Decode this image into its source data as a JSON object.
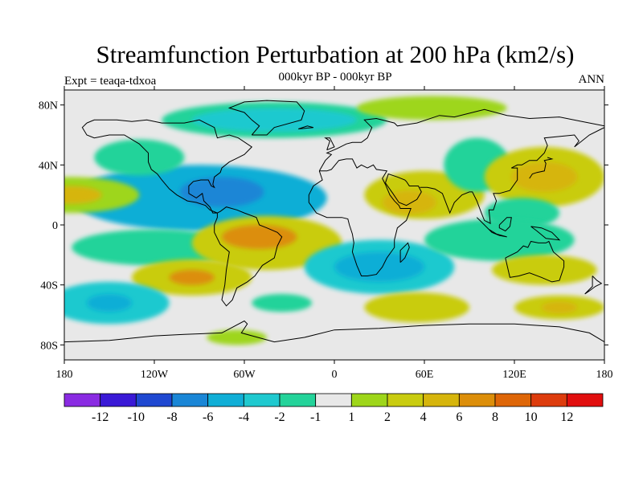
{
  "title": "Streamfunction Perturbation at 200 hPa (km2/s)",
  "subtitle": "000kyr BP - 000kyr BP",
  "left_label": "Expt = teaqa-tdxoa",
  "right_label": "ANN",
  "lat_ticks": [
    {
      "lat": 80,
      "label": "80N"
    },
    {
      "lat": 40,
      "label": "40N"
    },
    {
      "lat": 0,
      "label": "0"
    },
    {
      "lat": -40,
      "label": "40S"
    },
    {
      "lat": -80,
      "label": "80S"
    }
  ],
  "lon_ticks": [
    {
      "lon": -180,
      "label": "180"
    },
    {
      "lon": -120,
      "label": "120W"
    },
    {
      "lon": -60,
      "label": "60W"
    },
    {
      "lon": 0,
      "label": "0"
    },
    {
      "lon": 60,
      "label": "60E"
    },
    {
      "lon": 120,
      "label": "120E"
    },
    {
      "lon": 180,
      "label": "180"
    }
  ],
  "colorbar": {
    "colors": [
      "#8a2be2",
      "#3a19d6",
      "#1f48d1",
      "#1a86d6",
      "#10aed6",
      "#1fc9cf",
      "#24d39a",
      "#e8e8e8",
      "#9ed61a",
      "#c9cc10",
      "#d6b50c",
      "#dc8e0a",
      "#de6608",
      "#dd3c0d",
      "#e10e0e"
    ],
    "labels": [
      "-12",
      "-10",
      "-8",
      "-6",
      "-4",
      "-2",
      "-1",
      "1",
      "2",
      "4",
      "6",
      "8",
      "10",
      "12"
    ]
  },
  "regions": [
    {
      "lon": -90,
      "lat": 18,
      "rx": 85,
      "ry": 22,
      "color": "#10aed6"
    },
    {
      "lon": -75,
      "lat": 22,
      "rx": 28,
      "ry": 10,
      "color": "#1a86d6"
    },
    {
      "lon": -130,
      "lat": 45,
      "rx": 30,
      "ry": 12,
      "color": "#24d39a"
    },
    {
      "lon": -175,
      "lat": 20,
      "rx": 45,
      "ry": 12,
      "color": "#9ed61a"
    },
    {
      "lon": -175,
      "lat": 20,
      "rx": 20,
      "ry": 6,
      "color": "#d6b50c"
    },
    {
      "lon": -40,
      "lat": 70,
      "rx": 75,
      "ry": 12,
      "color": "#24d39a"
    },
    {
      "lon": -40,
      "lat": 70,
      "rx": 55,
      "ry": 8,
      "color": "#1fc9cf"
    },
    {
      "lon": 65,
      "lat": 78,
      "rx": 50,
      "ry": 8,
      "color": "#9ed61a"
    },
    {
      "lon": 60,
      "lat": 20,
      "rx": 40,
      "ry": 16,
      "color": "#c9cc10"
    },
    {
      "lon": 50,
      "lat": 15,
      "rx": 18,
      "ry": 8,
      "color": "#d6b50c"
    },
    {
      "lon": 95,
      "lat": 40,
      "rx": 22,
      "ry": 18,
      "color": "#24d39a"
    },
    {
      "lon": 140,
      "lat": 32,
      "rx": 40,
      "ry": 20,
      "color": "#c9cc10"
    },
    {
      "lon": 140,
      "lat": 32,
      "rx": 22,
      "ry": 10,
      "color": "#d6b50c"
    },
    {
      "lon": 125,
      "lat": 8,
      "rx": 25,
      "ry": 10,
      "color": "#24d39a"
    },
    {
      "lon": -120,
      "lat": -15,
      "rx": 55,
      "ry": 12,
      "color": "#24d39a"
    },
    {
      "lon": -45,
      "lat": -12,
      "rx": 50,
      "ry": 18,
      "color": "#c9cc10"
    },
    {
      "lon": -50,
      "lat": -8,
      "rx": 25,
      "ry": 8,
      "color": "#dc8e0a"
    },
    {
      "lon": -95,
      "lat": -35,
      "rx": 40,
      "ry": 12,
      "color": "#c9cc10"
    },
    {
      "lon": -95,
      "lat": -35,
      "rx": 15,
      "ry": 5,
      "color": "#dc8e0a"
    },
    {
      "lon": -150,
      "lat": -52,
      "rx": 40,
      "ry": 14,
      "color": "#1fc9cf"
    },
    {
      "lon": -150,
      "lat": -52,
      "rx": 15,
      "ry": 6,
      "color": "#10aed6"
    },
    {
      "lon": 30,
      "lat": -28,
      "rx": 50,
      "ry": 18,
      "color": "#1fc9cf"
    },
    {
      "lon": 30,
      "lat": -28,
      "rx": 30,
      "ry": 10,
      "color": "#10aed6"
    },
    {
      "lon": -35,
      "lat": -52,
      "rx": 20,
      "ry": 6,
      "color": "#24d39a"
    },
    {
      "lon": 55,
      "lat": -55,
      "rx": 35,
      "ry": 10,
      "color": "#c9cc10"
    },
    {
      "lon": 110,
      "lat": -10,
      "rx": 50,
      "ry": 14,
      "color": "#24d39a"
    },
    {
      "lon": 140,
      "lat": -30,
      "rx": 35,
      "ry": 10,
      "color": "#c9cc10"
    },
    {
      "lon": 150,
      "lat": -55,
      "rx": 30,
      "ry": 8,
      "color": "#c9cc10"
    },
    {
      "lon": 150,
      "lat": -55,
      "rx": 12,
      "ry": 4,
      "color": "#d6b50c"
    },
    {
      "lon": -65,
      "lat": -75,
      "rx": 20,
      "ry": 5,
      "color": "#9ed61a"
    }
  ],
  "coastlines": [
    [
      [
        -165,
        68
      ],
      [
        -160,
        70
      ],
      [
        -145,
        70
      ],
      [
        -135,
        69
      ],
      [
        -125,
        70
      ],
      [
        -115,
        68
      ],
      [
        -100,
        68
      ],
      [
        -90,
        70
      ],
      [
        -80,
        65
      ],
      [
        -78,
        58
      ],
      [
        -70,
        60
      ],
      [
        -64,
        58
      ],
      [
        -55,
        52
      ],
      [
        -60,
        47
      ],
      [
        -66,
        44
      ],
      [
        -70,
        42
      ],
      [
        -75,
        38
      ],
      [
        -76,
        35
      ],
      [
        -80,
        32
      ],
      [
        -81,
        27
      ],
      [
        -80,
        25
      ],
      [
        -82,
        26
      ],
      [
        -84,
        30
      ],
      [
        -89,
        30
      ],
      [
        -94,
        29
      ],
      [
        -97,
        26
      ],
      [
        -97,
        21
      ],
      [
        -92,
        18
      ],
      [
        -88,
        21
      ],
      [
        -87,
        16
      ],
      [
        -83,
        12
      ],
      [
        -81,
        8
      ],
      [
        -78,
        8
      ],
      [
        -76,
        9
      ],
      [
        -72,
        12
      ],
      [
        -65,
        10
      ],
      [
        -60,
        8
      ],
      [
        -52,
        5
      ],
      [
        -50,
        0
      ],
      [
        -45,
        -2
      ],
      [
        -38,
        -5
      ],
      [
        -35,
        -8
      ],
      [
        -38,
        -14
      ],
      [
        -40,
        -22
      ],
      [
        -48,
        -27
      ],
      [
        -53,
        -34
      ],
      [
        -58,
        -38
      ],
      [
        -65,
        -42
      ],
      [
        -68,
        -50
      ],
      [
        -72,
        -54
      ],
      [
        -75,
        -50
      ],
      [
        -73,
        -40
      ],
      [
        -72,
        -30
      ],
      [
        -70,
        -18
      ],
      [
        -76,
        -13
      ],
      [
        -80,
        -5
      ],
      [
        -80,
        0
      ],
      [
        -78,
        5
      ],
      [
        -78,
        8
      ],
      [
        -83,
        10
      ],
      [
        -86,
        13
      ],
      [
        -92,
        15
      ],
      [
        -98,
        16
      ],
      [
        -105,
        20
      ],
      [
        -110,
        24
      ],
      [
        -115,
        30
      ],
      [
        -118,
        34
      ],
      [
        -122,
        37
      ],
      [
        -124,
        42
      ],
      [
        -124,
        48
      ],
      [
        -130,
        54
      ],
      [
        -140,
        60
      ],
      [
        -150,
        60
      ],
      [
        -160,
        58
      ],
      [
        -165,
        60
      ],
      [
        -168,
        65
      ],
      [
        -165,
        68
      ]
    ],
    [
      [
        -55,
        60
      ],
      [
        -45,
        60
      ],
      [
        -40,
        65
      ],
      [
        -22,
        70
      ],
      [
        -20,
        76
      ],
      [
        -25,
        82
      ],
      [
        -45,
        83
      ],
      [
        -60,
        82
      ],
      [
        -70,
        78
      ],
      [
        -60,
        75
      ],
      [
        -55,
        70
      ],
      [
        -50,
        66
      ],
      [
        -55,
        60
      ]
    ],
    [
      [
        -10,
        36
      ],
      [
        -6,
        43
      ],
      [
        -2,
        47
      ],
      [
        -5,
        48
      ],
      [
        2,
        51
      ],
      [
        8,
        54
      ],
      [
        12,
        55
      ],
      [
        18,
        55
      ],
      [
        22,
        58
      ],
      [
        25,
        65
      ],
      [
        20,
        70
      ],
      [
        28,
        71
      ],
      [
        40,
        68
      ],
      [
        42,
        66
      ],
      [
        55,
        68
      ],
      [
        70,
        73
      ],
      [
        80,
        72
      ],
      [
        100,
        77
      ],
      [
        115,
        73
      ],
      [
        130,
        71
      ],
      [
        150,
        72
      ],
      [
        165,
        69
      ],
      [
        180,
        66
      ]
    ],
    [
      [
        -10,
        36
      ],
      [
        -8,
        30
      ],
      [
        -14,
        26
      ],
      [
        -17,
        20
      ],
      [
        -17,
        15
      ],
      [
        -12,
        8
      ],
      [
        -5,
        5
      ],
      [
        5,
        5
      ],
      [
        9,
        4
      ],
      [
        10,
        0
      ],
      [
        12,
        -6
      ],
      [
        13,
        -12
      ],
      [
        12,
        -18
      ],
      [
        15,
        -27
      ],
      [
        18,
        -34
      ],
      [
        22,
        -34
      ],
      [
        28,
        -33
      ],
      [
        32,
        -28
      ],
      [
        35,
        -22
      ],
      [
        40,
        -15
      ],
      [
        40,
        -10
      ],
      [
        42,
        -2
      ],
      [
        48,
        3
      ],
      [
        51,
        11
      ],
      [
        44,
        11
      ],
      [
        43,
        13
      ],
      [
        40,
        16
      ],
      [
        37,
        20
      ],
      [
        34,
        27
      ],
      [
        32,
        31
      ],
      [
        35,
        36
      ],
      [
        28,
        37
      ],
      [
        26,
        40
      ],
      [
        22,
        38
      ],
      [
        18,
        40
      ],
      [
        15,
        38
      ],
      [
        12,
        44
      ],
      [
        8,
        44
      ],
      [
        3,
        43
      ],
      [
        -2,
        37
      ],
      [
        -5,
        36
      ],
      [
        -10,
        36
      ]
    ],
    [
      [
        34,
        28
      ],
      [
        39,
        21
      ],
      [
        43,
        15
      ],
      [
        48,
        13
      ],
      [
        55,
        17
      ],
      [
        58,
        22
      ],
      [
        56,
        26
      ],
      [
        50,
        26
      ],
      [
        48,
        29
      ],
      [
        47,
        30
      ],
      [
        42,
        32
      ],
      [
        36,
        34
      ],
      [
        34,
        28
      ]
    ],
    [
      [
        57,
        25
      ],
      [
        62,
        25
      ],
      [
        67,
        24
      ],
      [
        72,
        21
      ],
      [
        77,
        8
      ],
      [
        80,
        15
      ],
      [
        85,
        20
      ],
      [
        90,
        22
      ],
      [
        92,
        22
      ],
      [
        95,
        16
      ],
      [
        98,
        8
      ],
      [
        100,
        3
      ],
      [
        104,
        1
      ],
      [
        103,
        10
      ],
      [
        106,
        10
      ],
      [
        108,
        16
      ],
      [
        106,
        21
      ],
      [
        110,
        21
      ],
      [
        117,
        23
      ],
      [
        122,
        30
      ],
      [
        122,
        38
      ],
      [
        118,
        38
      ],
      [
        122,
        40
      ],
      [
        125,
        40
      ],
      [
        130,
        43
      ],
      [
        135,
        43
      ],
      [
        140,
        48
      ],
      [
        142,
        53
      ],
      [
        140,
        58
      ],
      [
        150,
        59
      ],
      [
        160,
        60
      ],
      [
        163,
        56
      ],
      [
        160,
        52
      ],
      [
        170,
        60
      ],
      [
        178,
        64
      ],
      [
        180,
        65
      ]
    ],
    [
      [
        130,
        31
      ],
      [
        132,
        34
      ],
      [
        135,
        35
      ],
      [
        140,
        36
      ],
      [
        141,
        41
      ],
      [
        140,
        43
      ],
      [
        145,
        44
      ],
      [
        142,
        45
      ]
    ],
    [
      [
        114,
        -22
      ],
      [
        117,
        -35
      ],
      [
        123,
        -34
      ],
      [
        130,
        -32
      ],
      [
        138,
        -35
      ],
      [
        145,
        -38
      ],
      [
        150,
        -37
      ],
      [
        153,
        -28
      ],
      [
        153,
        -24
      ],
      [
        146,
        -18
      ],
      [
        143,
        -11
      ],
      [
        141,
        -12
      ],
      [
        136,
        -12
      ],
      [
        131,
        -11
      ],
      [
        129,
        -15
      ],
      [
        126,
        -14
      ],
      [
        122,
        -18
      ],
      [
        114,
        -22
      ]
    ],
    [
      [
        -180,
        -78
      ],
      [
        -150,
        -77
      ],
      [
        -120,
        -74
      ],
      [
        -100,
        -73
      ],
      [
        -75,
        -72
      ],
      [
        -60,
        -64
      ],
      [
        -58,
        -66
      ],
      [
        -62,
        -72
      ],
      [
        -40,
        -78
      ],
      [
        -20,
        -75
      ],
      [
        0,
        -70
      ],
      [
        30,
        -69
      ],
      [
        60,
        -67
      ],
      [
        90,
        -66
      ],
      [
        120,
        -66
      ],
      [
        150,
        -68
      ],
      [
        170,
        -72
      ],
      [
        180,
        -78
      ]
    ],
    [
      [
        172,
        -34
      ],
      [
        175,
        -37
      ],
      [
        178,
        -39
      ],
      [
        174,
        -41
      ],
      [
        170,
        -44
      ],
      [
        167,
        -46
      ],
      [
        172,
        -41
      ],
      [
        172,
        -34
      ]
    ],
    [
      [
        95,
        5
      ],
      [
        100,
        0
      ],
      [
        105,
        -5
      ],
      [
        110,
        -7
      ],
      [
        115,
        -8
      ],
      [
        108,
        -6
      ],
      [
        103,
        -3
      ],
      [
        97,
        3
      ],
      [
        95,
        5
      ]
    ],
    [
      [
        110,
        0
      ],
      [
        115,
        5
      ],
      [
        118,
        5
      ],
      [
        117,
        -1
      ],
      [
        114,
        -4
      ],
      [
        110,
        -2
      ],
      [
        110,
        0
      ]
    ],
    [
      [
        131,
        -1
      ],
      [
        138,
        -2
      ],
      [
        145,
        -5
      ],
      [
        150,
        -10
      ],
      [
        141,
        -9
      ],
      [
        135,
        -4
      ],
      [
        131,
        -1
      ]
    ],
    [
      [
        -5,
        50
      ],
      [
        -3,
        56
      ],
      [
        -6,
        58
      ],
      [
        -3,
        58
      ],
      [
        0,
        52
      ],
      [
        -5,
        50
      ]
    ],
    [
      [
        -24,
        64
      ],
      [
        -14,
        65
      ],
      [
        -18,
        66
      ],
      [
        -24,
        64
      ]
    ],
    [
      [
        44,
        -25
      ],
      [
        47,
        -22
      ],
      [
        50,
        -15
      ],
      [
        49,
        -12
      ],
      [
        44,
        -17
      ],
      [
        44,
        -25
      ]
    ]
  ]
}
